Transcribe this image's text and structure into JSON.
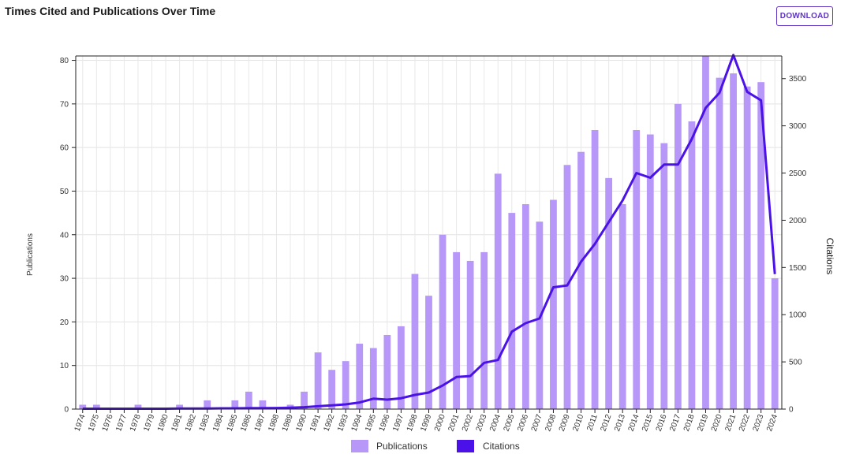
{
  "header": {
    "title": "Times Cited and Publications Over Time",
    "download_label": "DOWNLOAD"
  },
  "chart_data": {
    "type": "bar",
    "title": "",
    "categories": [
      "1974",
      "1975",
      "1976",
      "1977",
      "1978",
      "1979",
      "1980",
      "1981",
      "1982",
      "1983",
      "1984",
      "1985",
      "1986",
      "1987",
      "1988",
      "1989",
      "1990",
      "1991",
      "1992",
      "1993",
      "1994",
      "1995",
      "1996",
      "1997",
      "1998",
      "1999",
      "2000",
      "2001",
      "2002",
      "2003",
      "2004",
      "2005",
      "2006",
      "2007",
      "2008",
      "2009",
      "2010",
      "2011",
      "2012",
      "2013",
      "2014",
      "2015",
      "2016",
      "2017",
      "2018",
      "2019",
      "2020",
      "2021",
      "2022",
      "2023",
      "2024"
    ],
    "series": [
      {
        "name": "Publications",
        "type": "bar",
        "axis": "left",
        "color": "#b797f7",
        "values": [
          1,
          1,
          0,
          0,
          1,
          0,
          0,
          1,
          0,
          2,
          0,
          2,
          4,
          2,
          0,
          1,
          4,
          13,
          9,
          11,
          15,
          14,
          17,
          19,
          31,
          26,
          40,
          36,
          34,
          36,
          54,
          45,
          47,
          43,
          48,
          56,
          59,
          64,
          53,
          47,
          64,
          63,
          61,
          70,
          66,
          81,
          76,
          77,
          74,
          75,
          30
        ]
      },
      {
        "name": "Citations",
        "type": "line",
        "axis": "right",
        "color": "#4a12e8",
        "values": [
          4,
          4,
          4,
          4,
          4,
          4,
          4,
          6,
          6,
          6,
          8,
          8,
          10,
          10,
          12,
          14,
          20,
          30,
          40,
          50,
          70,
          110,
          100,
          115,
          150,
          175,
          250,
          340,
          350,
          490,
          520,
          820,
          910,
          960,
          1290,
          1310,
          1560,
          1750,
          1980,
          2210,
          2500,
          2450,
          2590,
          2590,
          2860,
          3190,
          3350,
          3750,
          3360,
          3270,
          1430
        ]
      }
    ],
    "ylabel": "Publications",
    "y2label": "Citations",
    "ylim": [
      0,
      81
    ],
    "y2lim": [
      0,
      3740
    ],
    "yticks": [
      0,
      10,
      20,
      30,
      40,
      50,
      60,
      70,
      80
    ],
    "y2ticks": [
      0,
      500,
      1000,
      1500,
      2000,
      2500,
      3000,
      3500
    ],
    "grid": true,
    "legend": "bottom-center"
  }
}
